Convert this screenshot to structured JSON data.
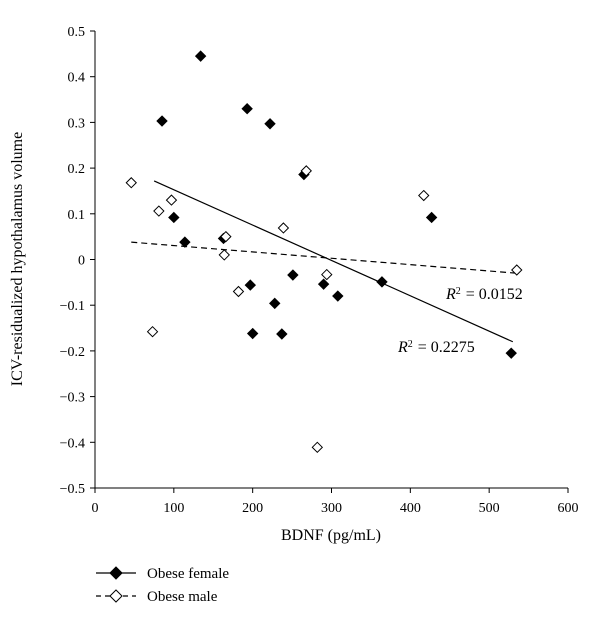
{
  "chart_data": {
    "type": "scatter",
    "title": "",
    "xlabel": "BDNF (pg/mL)",
    "ylabel": "ICV-residualized hypothalamus volume",
    "xlim": [
      0,
      600
    ],
    "ylim": [
      -0.5,
      0.5
    ],
    "x_ticks": [
      0,
      100,
      200,
      300,
      400,
      500,
      600
    ],
    "y_ticks": [
      -0.5,
      -0.4,
      -0.3,
      -0.2,
      -0.1,
      0,
      0.1,
      0.2,
      0.3,
      0.4,
      0.5
    ],
    "x_tick_labels": [
      "0",
      "100",
      "200",
      "300",
      "400",
      "500",
      "600"
    ],
    "y_tick_labels": [
      "−0.5",
      "−0.4",
      "−0.3",
      "−0.2",
      "−0.1",
      "0",
      "0.1",
      "0.2",
      "0.3",
      "0.4",
      "0.5"
    ],
    "grid": false,
    "legend_position": "bottom-left",
    "series": [
      {
        "name": "Obese female",
        "marker": "filled-diamond",
        "line_style": "solid",
        "color": "#000000",
        "points": [
          [
            85,
            0.303
          ],
          [
            100,
            0.092
          ],
          [
            114,
            0.038
          ],
          [
            134,
            0.445
          ],
          [
            163,
            0.046
          ],
          [
            193,
            0.33
          ],
          [
            197,
            -0.056
          ],
          [
            200,
            -0.162
          ],
          [
            222,
            0.297
          ],
          [
            228,
            -0.096
          ],
          [
            237,
            -0.163
          ],
          [
            251,
            -0.034
          ],
          [
            265,
            0.186
          ],
          [
            290,
            -0.054
          ],
          [
            308,
            -0.08
          ],
          [
            364,
            -0.049
          ],
          [
            427,
            0.092
          ],
          [
            528,
            -0.205
          ]
        ],
        "trendline": {
          "x": [
            75,
            530
          ],
          "y": [
            0.172,
            -0.18
          ]
        },
        "r2_label": "= 0.2275"
      },
      {
        "name": "Obese male",
        "marker": "open-diamond",
        "line_style": "dashed",
        "color": "#000000",
        "points": [
          [
            46,
            0.168
          ],
          [
            73,
            -0.158
          ],
          [
            81,
            0.106
          ],
          [
            97,
            0.13
          ],
          [
            164,
            0.01
          ],
          [
            166,
            0.05
          ],
          [
            182,
            -0.07
          ],
          [
            239,
            0.069
          ],
          [
            268,
            0.194
          ],
          [
            282,
            -0.411
          ],
          [
            294,
            -0.033
          ],
          [
            417,
            0.14
          ],
          [
            535,
            -0.023
          ]
        ],
        "trendline": {
          "x": [
            46,
            535
          ],
          "y": [
            0.038,
            -0.03
          ]
        },
        "r2_label": "= 0.0152"
      }
    ],
    "annotations": [
      {
        "series": "Obese male",
        "symbol": "R",
        "superscript": "2",
        "text": "= 0.0152"
      },
      {
        "series": "Obese female",
        "symbol": "R",
        "superscript": "2",
        "text": "= 0.2275"
      }
    ]
  }
}
